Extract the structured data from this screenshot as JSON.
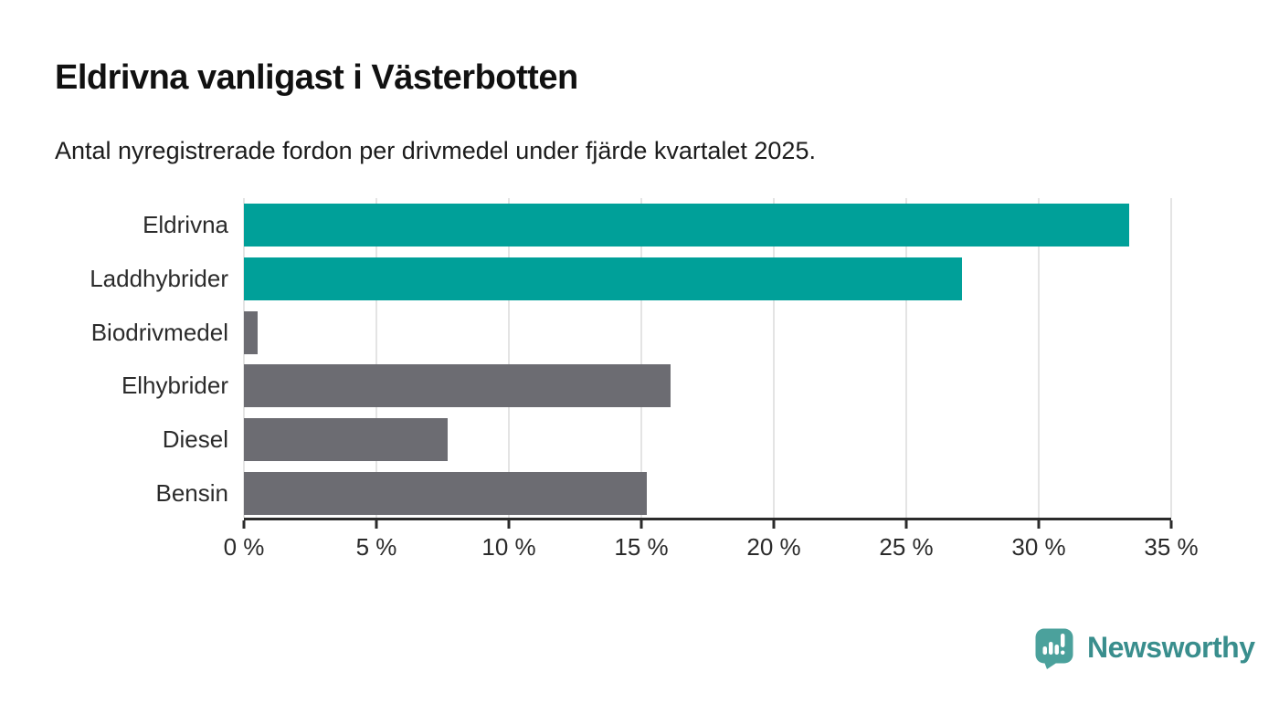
{
  "header": {
    "title": "Eldrivna vanligast i Västerbotten",
    "subtitle": "Antal nyregistrerade fordon per drivmedel under fjärde kvartalet 2025."
  },
  "chart_data": {
    "type": "bar",
    "orientation": "horizontal",
    "title": "Eldrivna vanligast i Västerbotten",
    "subtitle": "Antal nyregistrerade fordon per drivmedel under fjärde kvartalet 2025.",
    "categories": [
      "Eldrivna",
      "Laddhybrider",
      "Biodrivmedel",
      "Elhybrider",
      "Diesel",
      "Bensin"
    ],
    "values": [
      33.4,
      27.1,
      0.5,
      16.1,
      7.7,
      15.2
    ],
    "unit": "%",
    "bar_colors": [
      "#00a099",
      "#00a099",
      "#6c6c72",
      "#6c6c72",
      "#6c6c72",
      "#6c6c72"
    ],
    "highlight_color": "#00a099",
    "default_color": "#6c6c72",
    "xlim": [
      0,
      35
    ],
    "x_ticks": [
      0,
      5,
      10,
      15,
      20,
      25,
      30,
      35
    ],
    "x_tick_labels": [
      "0 %",
      "5 %",
      "10 %",
      "15 %",
      "20 %",
      "25 %",
      "30 %",
      "35 %"
    ],
    "grid": true,
    "legend": false,
    "xlabel": "",
    "ylabel": ""
  },
  "footer": {
    "brand_name": "Newsworthy",
    "logo_icon": "newsworthy-speech-bubble-bar-chart",
    "brand_color": "#398e8d",
    "logo_color": "#4ba19c"
  },
  "style": {
    "background": "#ffffff",
    "axis_color": "#2b2b2b",
    "gridline_color": "#e4e4e4",
    "text_color": "#1c1c1c"
  }
}
